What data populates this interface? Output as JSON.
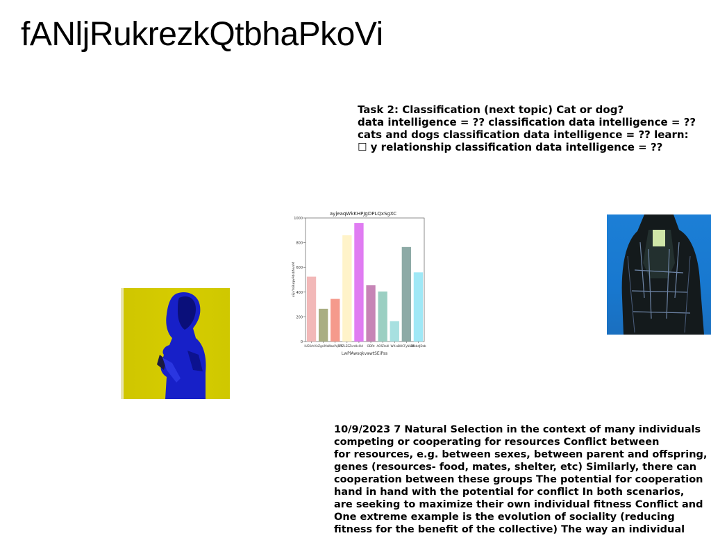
{
  "page": {
    "title": "fANljRukrezkQtbhaPkoVi"
  },
  "task_block": {
    "lines": [
      "Task 2: Classification (next topic) Cat or dog?",
      "data intelligence = ?? classification data intelligence = ??",
      "cats and dogs classification data intelligence = ?? learn:",
      "☐ y relationship classification data intelligence = ??"
    ]
  },
  "selection_block": {
    "lines": [
      "10/9/2023 7 Natural Selection in the context of many individuals",
      "competing or cooperating for resources Conflict between",
      "for resources, e.g. between sexes, between parent and offspring,",
      "genes (resources- food, mates, shelter, etc) Similarly, there can",
      "cooperation between these groups The potential for cooperation",
      "hand in hand with the potential for conflict In both scenarios,",
      "are seeking to maximize their own individual fitness Conflict and",
      "One extreme example is the evolution of sociality (reducing",
      "fitness for the benefit of the collective) The way an individual"
    ]
  },
  "images": {
    "left_photo": "person-using-phone-yellow-background",
    "right_photo": "person-in-dark-coat-holding-phone-blue-background"
  },
  "chart_data": {
    "type": "bar",
    "title": "ayjeaqWkKHPJgDPLQxSgXC",
    "xlabel": "LwPlAwsqkvawtSEiPss",
    "ylabel": "xEjvYsBuqwPdsbNvnM",
    "ylim": [
      0,
      1000
    ],
    "yticks": [
      0,
      200,
      400,
      600,
      800,
      1000
    ],
    "categories": [
      "IUEKrhVic",
      "ZgsiMa",
      "WasPqTM",
      "bTZLEEZvm",
      "HxOd",
      "ODRt",
      "AOSRaN",
      "WXsc",
      "BHCFyNUMI",
      "EEsbdJDzb"
    ],
    "values": [
      525,
      265,
      345,
      860,
      960,
      455,
      405,
      165,
      765,
      560
    ],
    "colors": [
      "#f2b8b8",
      "#a9ae82",
      "#f59a8c",
      "#fff3c9",
      "#e07cf2",
      "#c684b6",
      "#9bcfc2",
      "#a7e0e0",
      "#8daaa6",
      "#9fe8f6"
    ],
    "grid": false
  }
}
